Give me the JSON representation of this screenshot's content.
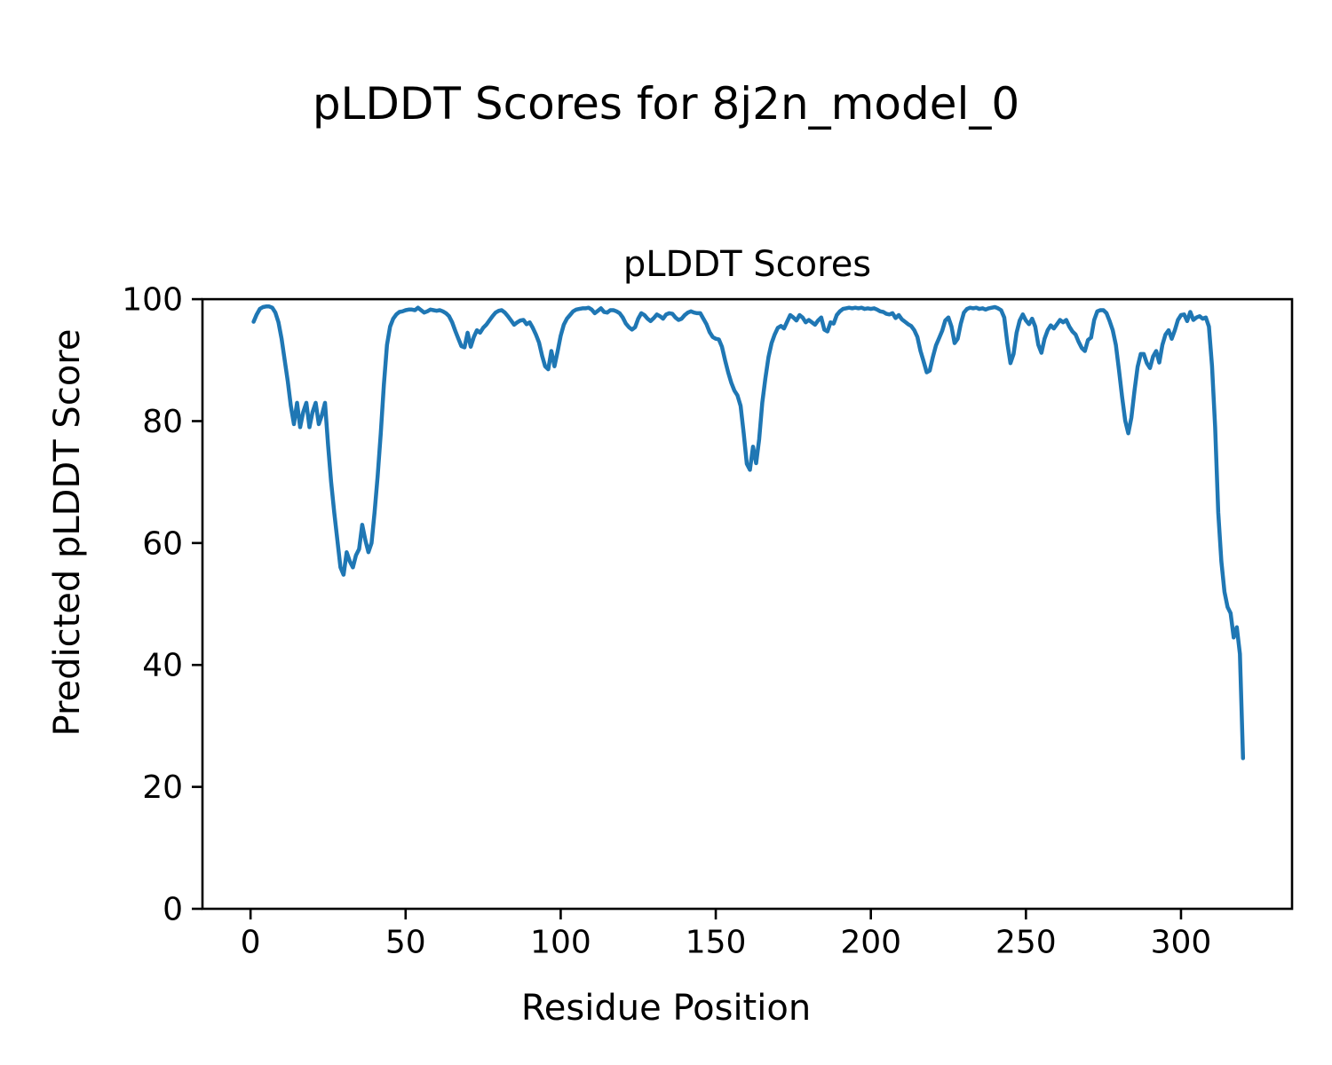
{
  "chart_data": {
    "type": "line",
    "suptitle": "pLDDT Scores for 8j2n_model_0",
    "title": "pLDDT Scores",
    "xlabel": "Residue Position",
    "ylabel": "Predicted pLDDT Score",
    "legend": null,
    "grid": false,
    "line_color": "#1f77b4",
    "axis_color": "#000000",
    "x_ticks": [
      0,
      50,
      100,
      150,
      200,
      250,
      300
    ],
    "y_ticks": [
      0,
      20,
      40,
      60,
      80,
      100
    ],
    "xlim": [
      -15.5,
      335.8
    ],
    "ylim": [
      0,
      100
    ],
    "series": [
      {
        "name": "pLDDT",
        "x_start": 1,
        "x_step": 1,
        "values": [
          96.3,
          97.5,
          98.4,
          98.7,
          98.8,
          98.8,
          98.6,
          97.8,
          96.2,
          93.5,
          90.0,
          86.5,
          82.5,
          79.5,
          83.0,
          79.0,
          81.5,
          83.0,
          79.0,
          81.5,
          83.0,
          79.5,
          81.0,
          83.0,
          76.0,
          70.0,
          65.0,
          60.5,
          56.0,
          54.8,
          58.5,
          57.0,
          56.0,
          58.0,
          59.0,
          63.0,
          60.5,
          58.5,
          60.0,
          65.0,
          71.0,
          78.0,
          86.0,
          92.5,
          95.5,
          96.8,
          97.5,
          97.9,
          98.0,
          98.2,
          98.3,
          98.3,
          98.2,
          98.6,
          98.2,
          97.8,
          98.0,
          98.3,
          98.2,
          98.1,
          98.2,
          98.0,
          97.7,
          97.2,
          96.2,
          94.8,
          93.5,
          92.3,
          92.1,
          94.5,
          92.2,
          93.8,
          94.9,
          94.5,
          95.3,
          95.8,
          96.5,
          97.2,
          97.8,
          98.1,
          98.2,
          97.8,
          97.2,
          96.5,
          95.8,
          96.2,
          96.5,
          96.6,
          95.9,
          96.2,
          95.3,
          94.2,
          92.9,
          90.7,
          89.0,
          88.5,
          91.5,
          89.0,
          91.4,
          94.0,
          95.8,
          96.8,
          97.4,
          98.0,
          98.3,
          98.4,
          98.5,
          98.5,
          98.6,
          98.3,
          97.7,
          98.1,
          98.5,
          97.9,
          97.8,
          98.2,
          98.2,
          98.0,
          97.7,
          97.0,
          96.0,
          95.4,
          95.0,
          95.4,
          96.8,
          97.7,
          97.4,
          96.8,
          96.4,
          96.9,
          97.5,
          97.2,
          96.8,
          97.5,
          97.7,
          97.6,
          97.0,
          96.6,
          96.8,
          97.4,
          97.8,
          98.0,
          97.8,
          97.7,
          97.7,
          96.8,
          95.9,
          94.6,
          93.8,
          93.5,
          93.4,
          92.2,
          90.0,
          88.0,
          86.3,
          85.0,
          84.2,
          82.5,
          78.0,
          73.0,
          72.0,
          75.8,
          73.1,
          77.0,
          83.0,
          87.0,
          90.5,
          92.8,
          94.2,
          95.3,
          95.6,
          95.2,
          96.3,
          97.4,
          97.0,
          96.5,
          97.4,
          97.0,
          96.2,
          96.6,
          96.2,
          95.8,
          96.5,
          97.0,
          95.0,
          94.7,
          96.2,
          96.0,
          97.4,
          98.0,
          98.4,
          98.5,
          98.6,
          98.5,
          98.6,
          98.5,
          98.6,
          98.4,
          98.5,
          98.4,
          98.5,
          98.3,
          98.0,
          97.9,
          97.6,
          97.5,
          97.7,
          96.9,
          97.4,
          96.7,
          96.3,
          95.9,
          95.6,
          94.9,
          93.8,
          91.5,
          89.8,
          88.0,
          88.3,
          90.5,
          92.4,
          93.6,
          94.8,
          96.5,
          97.0,
          95.5,
          92.8,
          93.5,
          96.0,
          97.8,
          98.4,
          98.6,
          98.5,
          98.6,
          98.4,
          98.5,
          98.3,
          98.5,
          98.6,
          98.7,
          98.5,
          98.2,
          97.0,
          92.8,
          89.5,
          91.0,
          94.5,
          96.5,
          97.5,
          96.5,
          95.9,
          96.8,
          95.5,
          92.5,
          91.2,
          93.5,
          94.9,
          95.7,
          95.2,
          95.9,
          96.6,
          96.2,
          96.6,
          95.5,
          94.7,
          94.2,
          93.0,
          92.0,
          91.5,
          93.3,
          93.7,
          96.6,
          98.0,
          98.2,
          98.2,
          97.7,
          96.4,
          94.9,
          92.5,
          88.4,
          84.0,
          80.1,
          78.0,
          80.6,
          85.0,
          88.9,
          91.0,
          91.0,
          89.5,
          88.7,
          90.6,
          91.5,
          89.6,
          92.5,
          94.2,
          94.9,
          93.5,
          94.9,
          96.6,
          97.4,
          97.5,
          96.4,
          97.9,
          96.6,
          97.0,
          97.2,
          96.8,
          97.0,
          95.5,
          89.0,
          79.0,
          65.0,
          57.0,
          52.0,
          49.5,
          48.5,
          44.5,
          46.2,
          41.8,
          24.7
        ]
      }
    ]
  }
}
